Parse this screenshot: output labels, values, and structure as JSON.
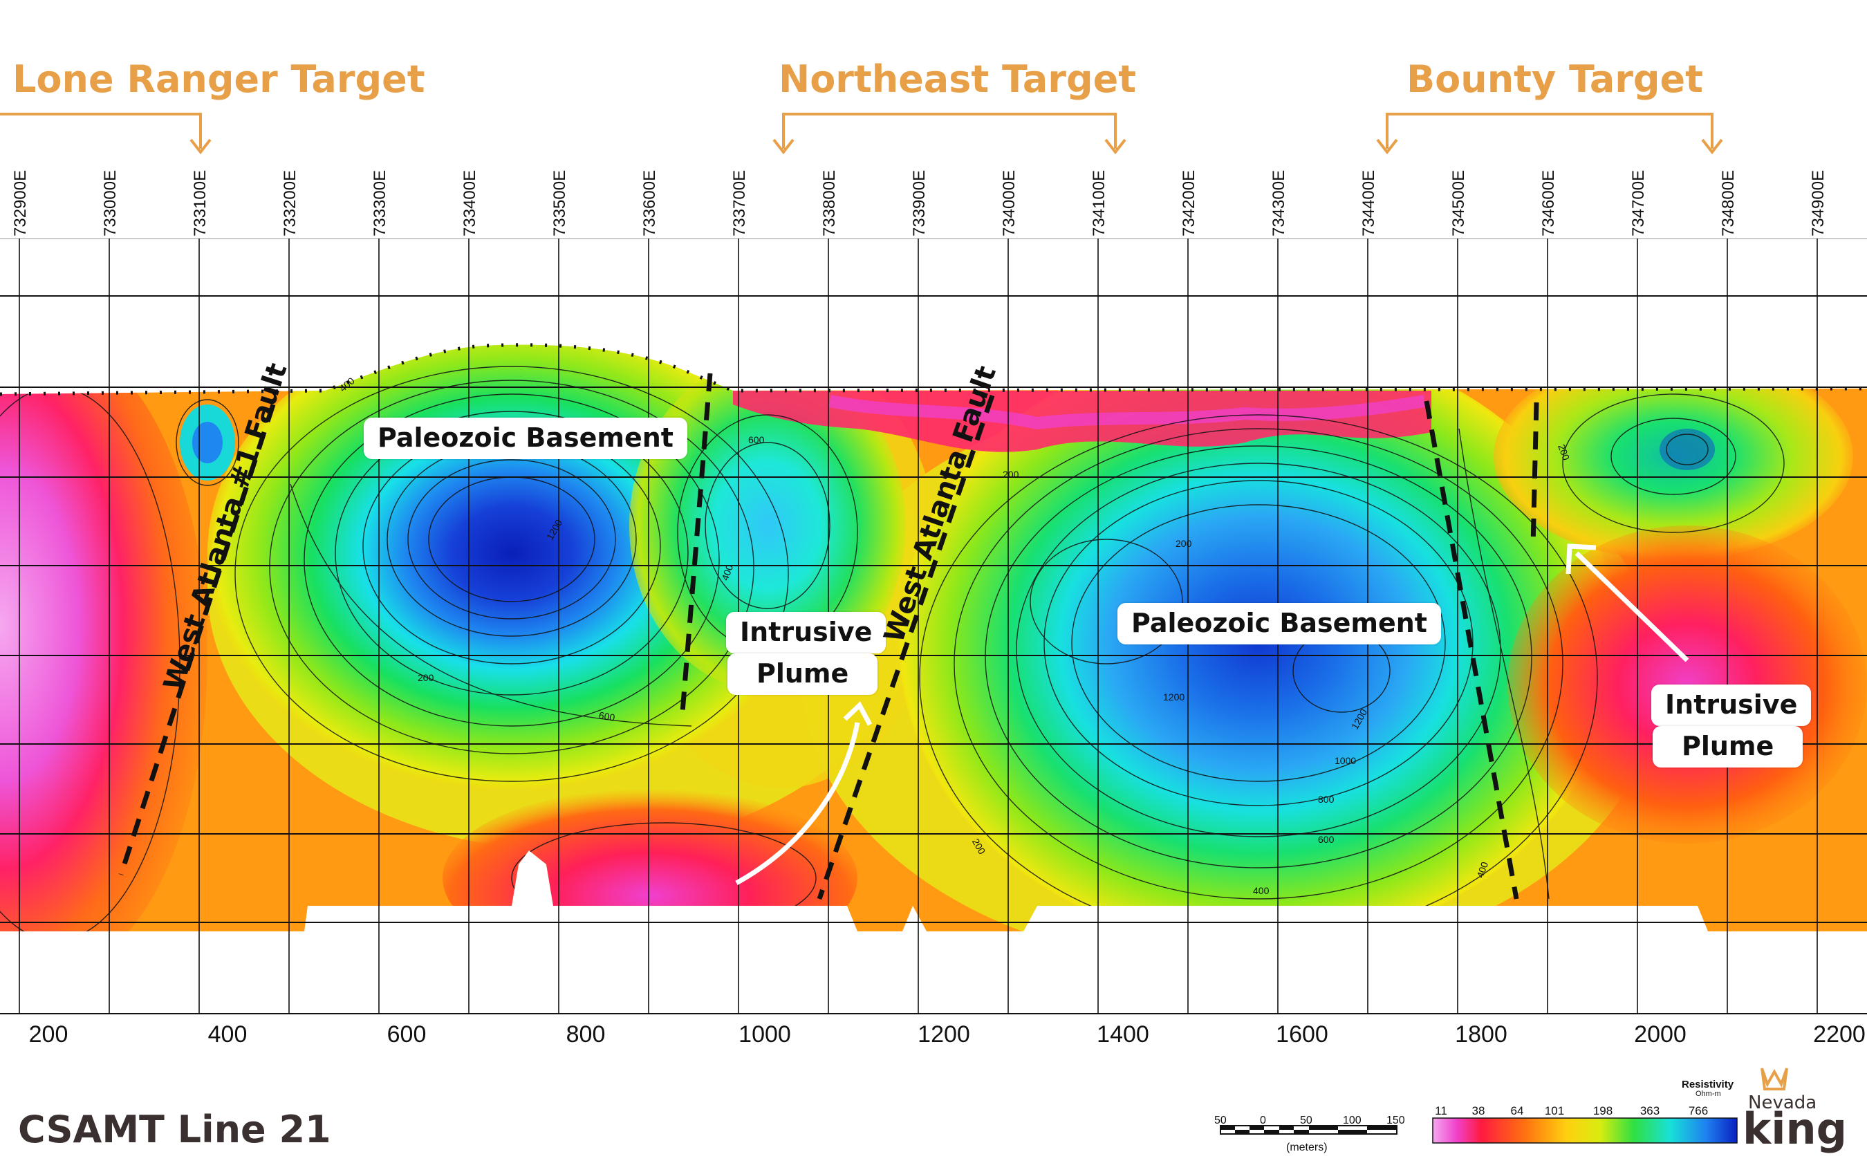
{
  "targets": [
    {
      "label": "Lone Ranger Target"
    },
    {
      "label": "Northeast Target"
    },
    {
      "label": "Bounty Target"
    }
  ],
  "eastings": [
    "732900E",
    "733000E",
    "733100E",
    "733200E",
    "733300E",
    "733400E",
    "733500E",
    "733600E",
    "733700E",
    "733800E",
    "733900E",
    "734000E",
    "734100E",
    "734200E",
    "734300E",
    "734400E",
    "734500E",
    "734600E",
    "734700E",
    "734800E",
    "734900E"
  ],
  "distance_ticks": [
    "200",
    "400",
    "600",
    "800",
    "1000",
    "1200",
    "1400",
    "1600",
    "1800",
    "2000",
    "2200"
  ],
  "callouts": {
    "basement_left": "Paleozoic Basement",
    "basement_right": "Paleozoic Basement",
    "plume_center_line1": "Intrusive",
    "plume_center_line2": "Plume",
    "plume_right_line1": "Intrusive",
    "plume_right_line2": "Plume"
  },
  "faults": {
    "west_atlanta_1": "West Atlanta #1 Fault",
    "west_atlanta": "West Atlanta Fault"
  },
  "contour_labels": [
    "400",
    "600",
    "1200",
    "200",
    "400",
    "200",
    "600",
    "200",
    "1200",
    "1200",
    "1000",
    "800",
    "600",
    "400",
    "200",
    "200",
    "400"
  ],
  "section_title": "CSAMT Line 21",
  "scale_bar": {
    "ticks": [
      "50",
      "0",
      "50",
      "100",
      "150"
    ],
    "unit": "(meters)"
  },
  "legend": {
    "title": "Resistivity",
    "unit": "Ohm-m",
    "values": [
      "11",
      "38",
      "64",
      "101",
      "198",
      "363",
      "766"
    ]
  },
  "logo": {
    "line1": "Nevada",
    "line2": "king",
    "icon": "crown-icon"
  },
  "colors": {
    "target_orange": "#E8A048"
  }
}
